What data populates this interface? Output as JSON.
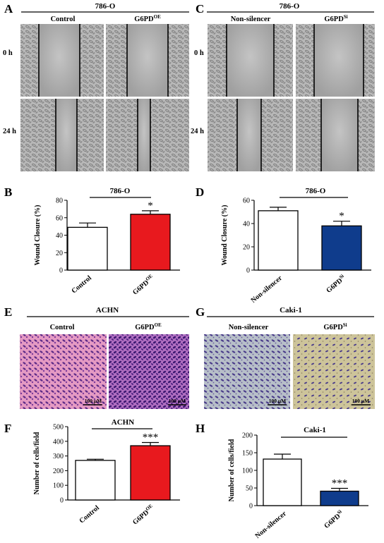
{
  "panels": {
    "A": {
      "letter": "A",
      "header": "786-O",
      "cols": [
        "Control",
        "G6PD"
      ],
      "col_sup": [
        "",
        "OE"
      ],
      "rows": [
        "0 h",
        "24 h"
      ]
    },
    "C": {
      "letter": "C",
      "header": "786-O",
      "cols": [
        "Non-silencer",
        "G6PD"
      ],
      "col_sup": [
        "",
        "Si"
      ],
      "rows": [
        "0 h",
        "24 h"
      ]
    },
    "E": {
      "letter": "E",
      "header": "ACHN",
      "cols": [
        "Control",
        "G6PD"
      ],
      "col_sup": [
        "",
        "OE"
      ],
      "scale_label": "100 μM"
    },
    "G": {
      "letter": "G",
      "header": "Caki-1",
      "cols": [
        "Non-silencer",
        "G6PD"
      ],
      "col_sup": [
        "",
        "Si"
      ],
      "scale_label": "100 μM"
    }
  },
  "chart_data": [
    {
      "panel": "B",
      "type": "bar",
      "title": "786-O",
      "ylabel": "Wound Closure (%)",
      "ylim": [
        0,
        80
      ],
      "yticks": [
        0,
        20,
        40,
        60,
        80
      ],
      "categories": [
        "Control",
        "G6PD"
      ],
      "category_sup": [
        "",
        "OE"
      ],
      "values": [
        49,
        64
      ],
      "errors": [
        5,
        4
      ],
      "colors": [
        "#ffffff",
        "#e8191e"
      ],
      "significance": [
        "",
        "*"
      ]
    },
    {
      "panel": "D",
      "type": "bar",
      "title": "786-O",
      "ylabel": "Wound Closure (%)",
      "ylim": [
        0,
        60
      ],
      "yticks": [
        0,
        20,
        40,
        60
      ],
      "categories": [
        "Non-silencer",
        "G6PD"
      ],
      "category_sup": [
        "",
        "Si"
      ],
      "values": [
        51,
        38
      ],
      "errors": [
        3,
        4
      ],
      "colors": [
        "#ffffff",
        "#0f3c8c"
      ],
      "significance": [
        "",
        "*"
      ]
    },
    {
      "panel": "F",
      "type": "bar",
      "title": "ACHN",
      "ylabel": "Number of cells/field",
      "ylim": [
        0,
        500
      ],
      "yticks": [
        0,
        100,
        200,
        300,
        400,
        500
      ],
      "categories": [
        "Control",
        "G6PD"
      ],
      "category_sup": [
        "",
        "OE"
      ],
      "values": [
        270,
        370
      ],
      "errors": [
        8,
        22
      ],
      "colors": [
        "#ffffff",
        "#e8191e"
      ],
      "significance": [
        "",
        "***"
      ]
    },
    {
      "panel": "H",
      "type": "bar",
      "title": "Caki-1",
      "ylabel": "Number of cells/field",
      "ylim": [
        0,
        200
      ],
      "yticks": [
        0,
        50,
        100,
        150,
        200
      ],
      "categories": [
        "Non-silencer",
        "G6PD"
      ],
      "category_sup": [
        "",
        "Si"
      ],
      "values": [
        132,
        41
      ],
      "errors": [
        14,
        8
      ],
      "colors": [
        "#ffffff",
        "#0f3c8c"
      ],
      "significance": [
        "",
        "***"
      ]
    }
  ]
}
